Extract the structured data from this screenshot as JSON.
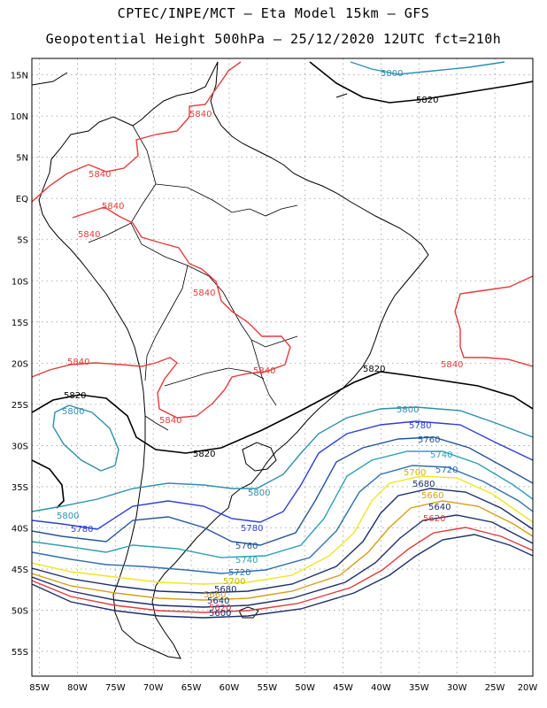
{
  "header": {
    "line1": "CPTEC/INPE/MCT –  Eta Model 15km – GFS",
    "line2": "Geopotential Height 500hPa – 25/12/2020 12UTC fct=210h"
  },
  "axes": {
    "lat_labels": [
      "15N",
      "10N",
      "5N",
      "EQ",
      "5S",
      "10S",
      "15S",
      "20S",
      "25S",
      "30S",
      "35S",
      "40S",
      "45S",
      "50S",
      "55S"
    ],
    "lon_labels": [
      "85W",
      "80W",
      "75W",
      "70W",
      "65W",
      "60W",
      "55W",
      "50W",
      "45W",
      "40W",
      "35W",
      "30W",
      "25W",
      "20W"
    ],
    "lat_range": [
      17,
      -58
    ],
    "lon_range": [
      -86,
      -20
    ],
    "grid": true
  },
  "contours": [
    {
      "level": "5600",
      "color": "#1b2f6b"
    },
    {
      "level": "5620",
      "color": "#e23b3b"
    },
    {
      "level": "5640",
      "color": "#1b2f6b"
    },
    {
      "level": "5660",
      "color": "#d4a017"
    },
    {
      "level": "5680",
      "color": "#1b2f6b"
    },
    {
      "level": "5700",
      "color": "#f2e51f"
    },
    {
      "level": "5720",
      "color": "#2e6fae"
    },
    {
      "level": "5740",
      "color": "#2ea0b8"
    },
    {
      "level": "5760",
      "color": "#24559a"
    },
    {
      "level": "5780",
      "color": "#2d3fd6"
    },
    {
      "level": "5800",
      "color": "#2f8fae"
    },
    {
      "level": "5820",
      "color": "#000000"
    },
    {
      "level": "5840",
      "color": "#e63b3b"
    }
  ],
  "labels": {
    "n5800": "5800",
    "n5820": "5820",
    "n5840": "5840",
    "n5780": "5780",
    "n5760": "5760",
    "n5740": "5740",
    "n5720": "5720",
    "n5700": "5700",
    "n5680": "5680",
    "n5660": "5660",
    "n5640": "5640",
    "n5620": "5620",
    "n5600": "5600"
  },
  "colors": {
    "coast": "#000000",
    "grid": "#9a9a9a"
  }
}
